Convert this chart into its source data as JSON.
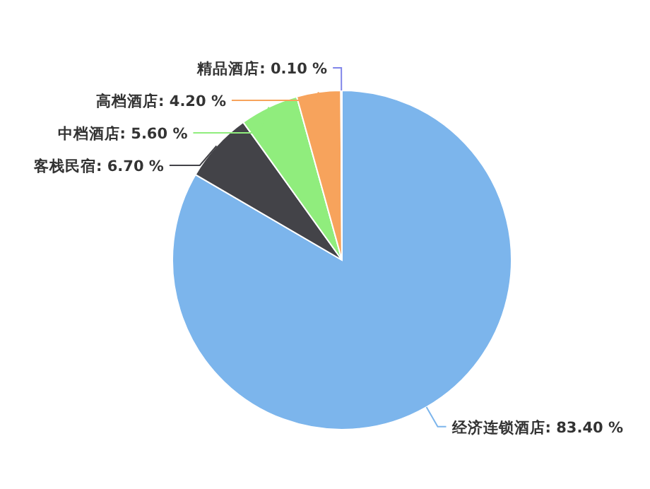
{
  "chart_data": {
    "type": "pie",
    "categories": [
      "经济连锁酒店",
      "客栈民宿",
      "中档酒店",
      "高档酒店",
      "精品酒店"
    ],
    "values": [
      83.4,
      6.7,
      5.6,
      4.2,
      0.1
    ],
    "value_labels": [
      "83.40 %",
      "6.70 %",
      "5.60 %",
      "4.20 %",
      "0.10 %"
    ],
    "colors": [
      "#7cb5ec",
      "#434348",
      "#90ed7d",
      "#f7a35c",
      "#8085e9"
    ]
  }
}
